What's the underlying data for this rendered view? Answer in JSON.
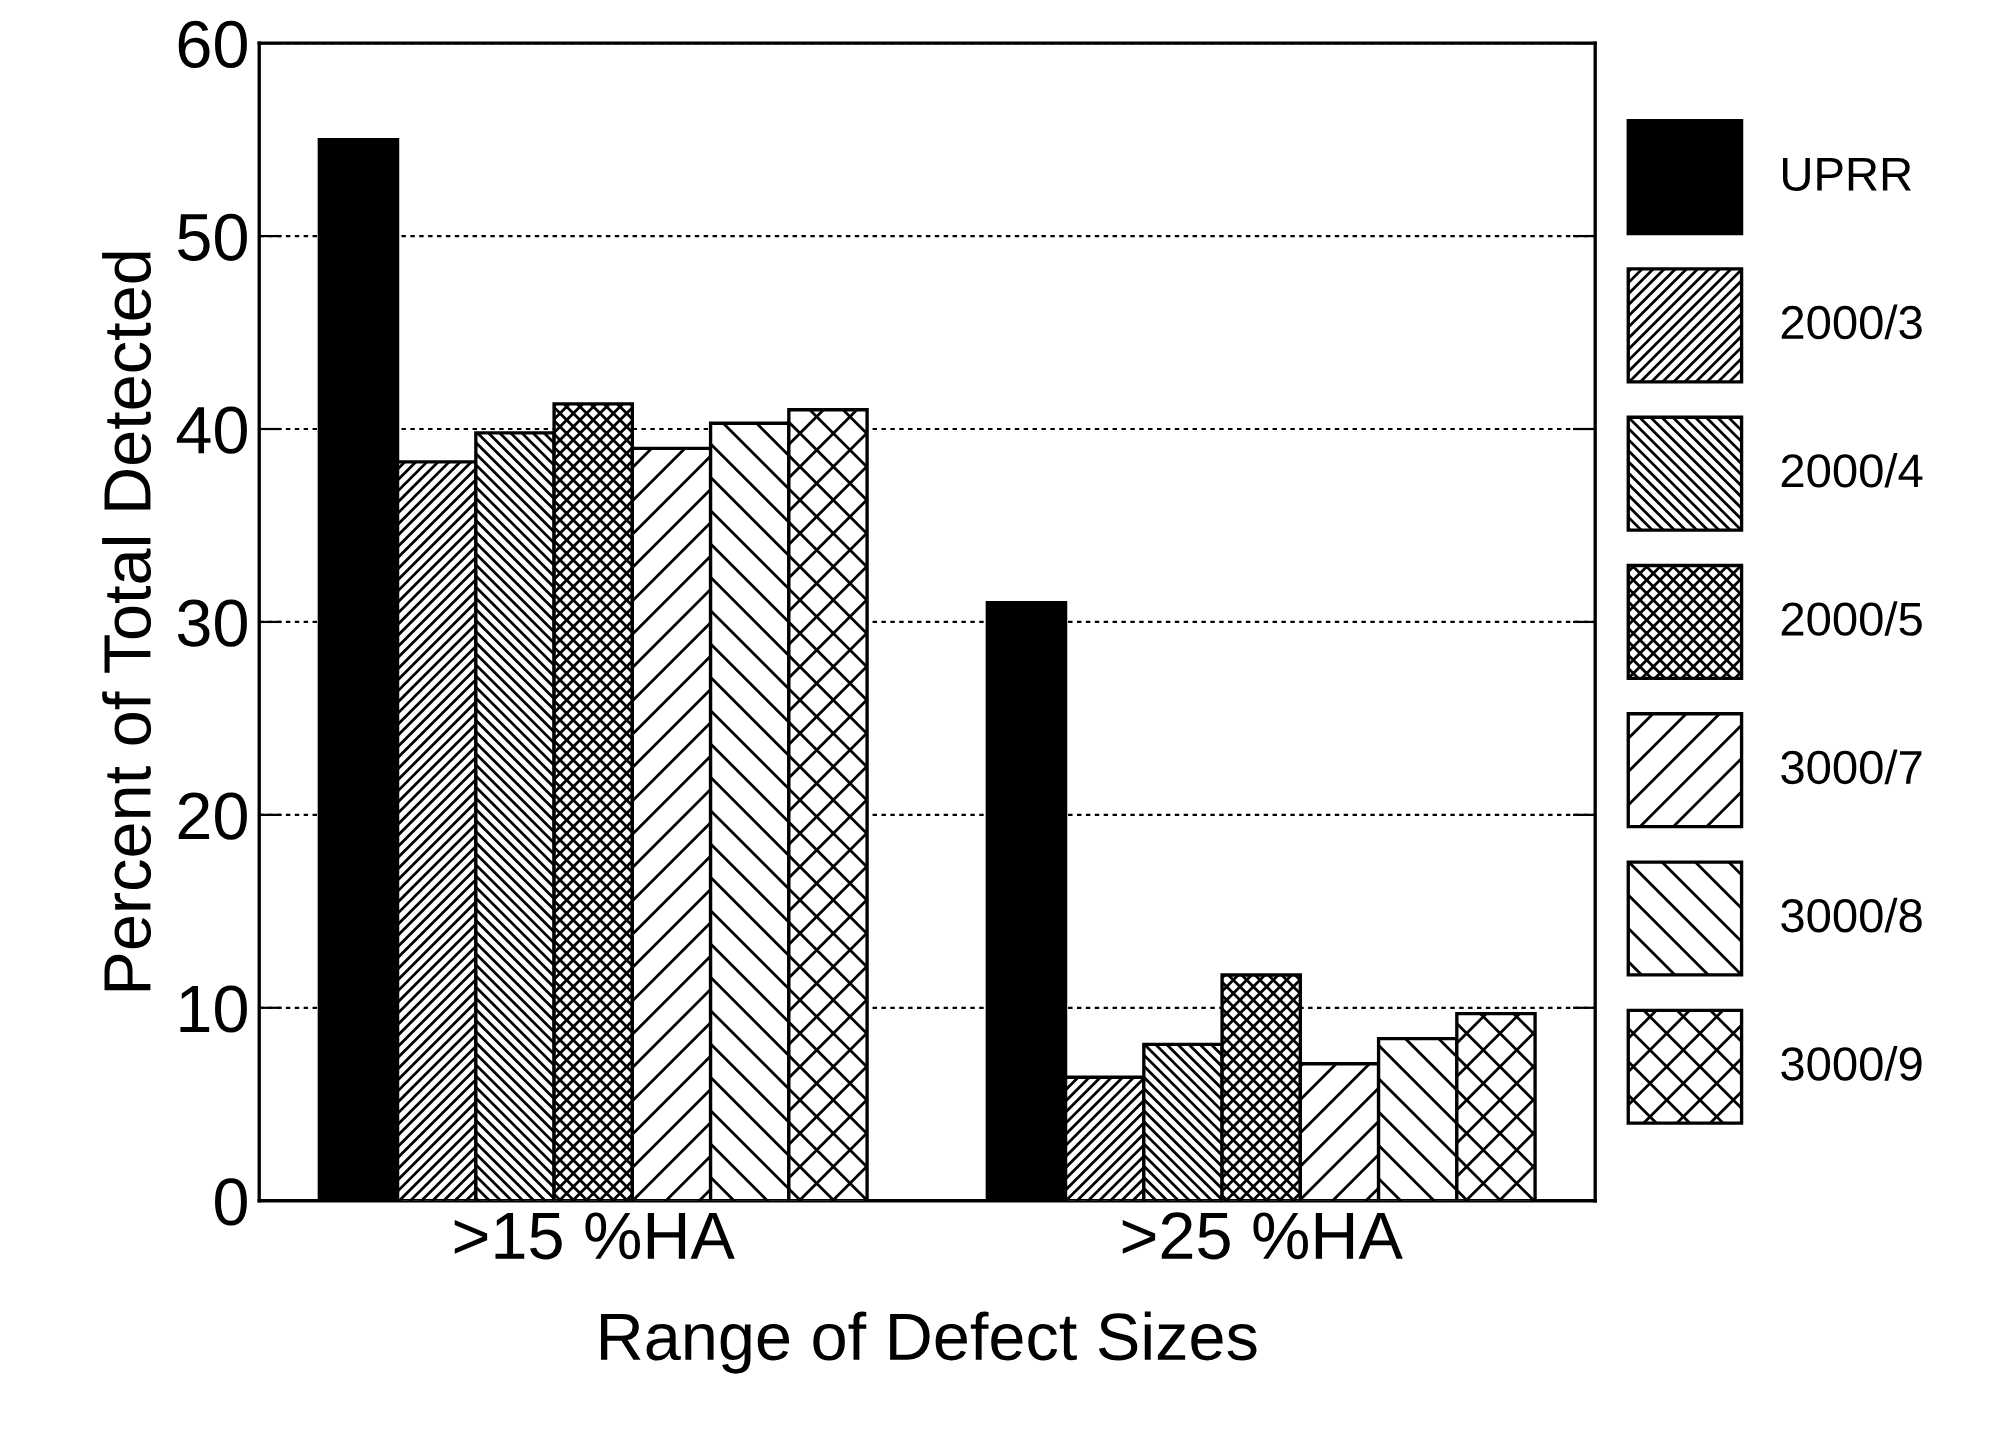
{
  "chart_data": {
    "type": "bar",
    "xlabel": "Range of Defect Sizes",
    "ylabel": "Percent of Total Detected",
    "categories": [
      ">15 %HA",
      ">25 %HA"
    ],
    "series": [
      {
        "name": "UPRR",
        "color": "#000000",
        "values": [
          55,
          31
        ]
      },
      {
        "name": "2000/3",
        "color": "#000000",
        "values": [
          38.3,
          6.4
        ]
      },
      {
        "name": "2000/4",
        "color": "#000000",
        "values": [
          39.8,
          8.1
        ]
      },
      {
        "name": "2000/5",
        "color": "#000000",
        "values": [
          41.3,
          11.7
        ]
      },
      {
        "name": "3000/7",
        "color": "#000000",
        "values": [
          39,
          7.1
        ]
      },
      {
        "name": "3000/8",
        "color": "#000000",
        "values": [
          40.3,
          8.4
        ]
      },
      {
        "name": "3000/9",
        "color": "#000000",
        "values": [
          41,
          9.7
        ]
      }
    ],
    "ylim": [
      0,
      60
    ],
    "yticks": [
      0,
      10,
      20,
      30,
      40,
      50,
      60
    ],
    "grid": "y",
    "legend": "right"
  }
}
